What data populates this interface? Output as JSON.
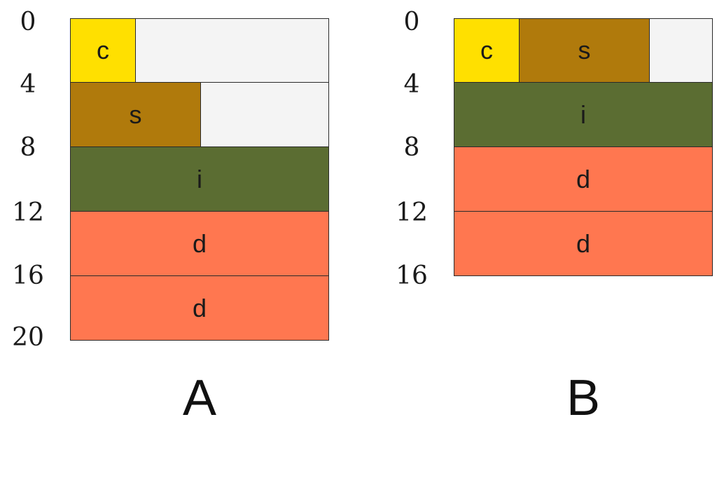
{
  "colors": {
    "c": "#ffe000",
    "s": "#b07a0c",
    "i": "#5b6d32",
    "d": "#ff7750",
    "padding": "#f4f4f4"
  },
  "diagrams": [
    {
      "title": "A",
      "offsets": [
        "0",
        "4",
        "8",
        "12",
        "16",
        "20"
      ],
      "rows": [
        [
          "c",
          ""
        ],
        [
          "s",
          ""
        ],
        [
          "i"
        ],
        [
          "d"
        ],
        [
          "d"
        ]
      ]
    },
    {
      "title": "B",
      "offsets": [
        "0",
        "4",
        "8",
        "12",
        "16"
      ],
      "rows": [
        [
          "c",
          "s",
          ""
        ],
        [
          "i"
        ],
        [
          "d"
        ],
        [
          "d"
        ]
      ]
    }
  ]
}
